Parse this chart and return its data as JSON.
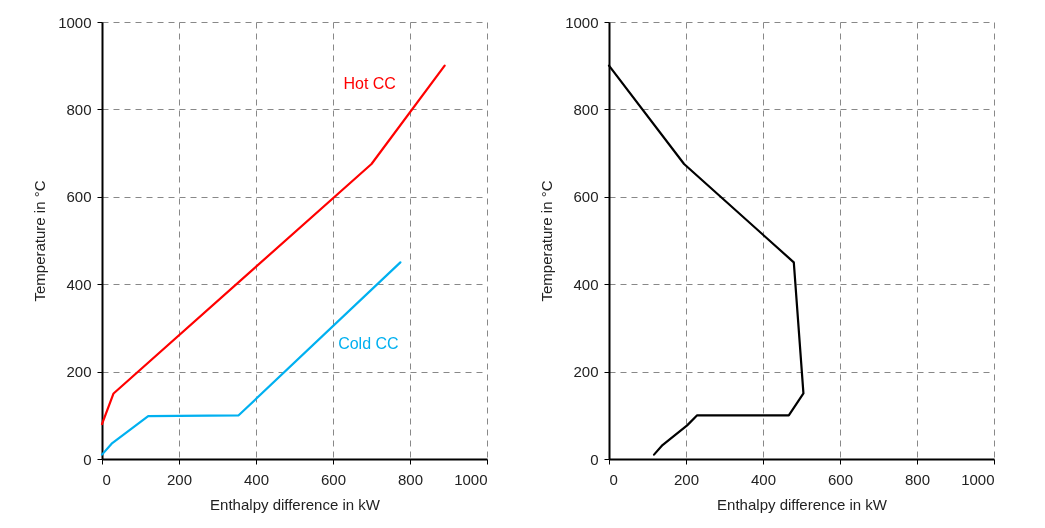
{
  "chart_data": [
    {
      "type": "line",
      "xlabel": "Enthalpy difference in kW",
      "ylabel": "Temperature in °C",
      "xlim": [
        0,
        1000
      ],
      "ylim": [
        0,
        1000
      ],
      "xticks": [
        0,
        200,
        400,
        600,
        800,
        1000
      ],
      "yticks": [
        0,
        200,
        400,
        600,
        800,
        1000
      ],
      "grid": true,
      "line_style": "solid",
      "series": [
        {
          "name": "Hot CC",
          "color": "#ff0000",
          "x": [
            0,
            30,
            700,
            890
          ],
          "values": [
            80,
            150,
            675,
            900
          ]
        },
        {
          "name": "Cold CC",
          "color": "#00b0f0",
          "x": [
            0,
            25,
            120,
            355,
            775
          ],
          "values": [
            10,
            35,
            98,
            100,
            450
          ]
        }
      ]
    },
    {
      "type": "line",
      "xlabel": "Enthalpy difference in kW",
      "ylabel": "Temperature in °C",
      "xlim": [
        0,
        1000
      ],
      "ylim": [
        0,
        1000
      ],
      "xticks": [
        0,
        200,
        400,
        600,
        800,
        1000
      ],
      "yticks": [
        0,
        200,
        400,
        600,
        800,
        1000
      ],
      "grid": true,
      "line_style": "solid",
      "series": [
        {
          "color": "#000000",
          "x": [
            0,
            195,
            480,
            505,
            467,
            229,
            203,
            139,
            117
          ],
          "values": [
            900,
            675,
            450,
            150,
            100,
            100,
            77,
            32,
            10
          ]
        }
      ]
    }
  ]
}
